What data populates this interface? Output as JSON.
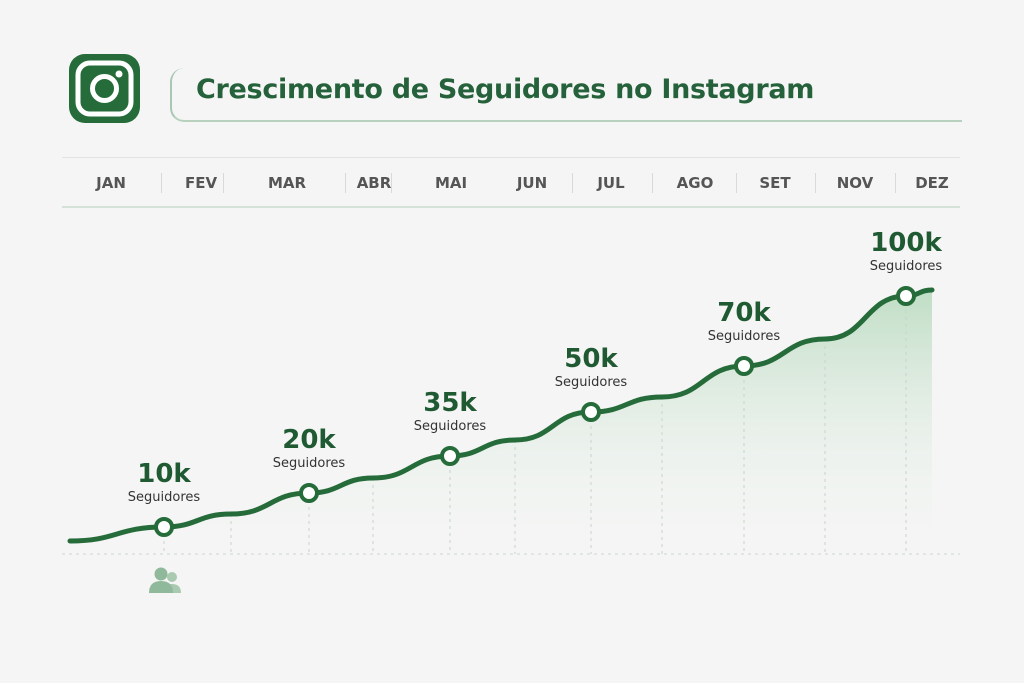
{
  "title": "Crescimento de Seguidores no Instagram",
  "icons": {
    "logo": "instagram-icon",
    "footer": "users-icon"
  },
  "colors": {
    "accent": "#266b3a",
    "fill": "#cfe6d3",
    "background": "#f4f5f4"
  },
  "chart_data": {
    "type": "area",
    "title": "Crescimento de Seguidores no Instagram",
    "categories": [
      "JAN",
      "FEV",
      "MAR",
      "ABR",
      "MAI",
      "JUN",
      "JUL",
      "AGO",
      "SET",
      "NOV",
      "DEZ"
    ],
    "points": [
      {
        "value_label": "10k",
        "unit": "Seguidores",
        "value": 10000
      },
      {
        "value_label": "20k",
        "unit": "Seguidores",
        "value": 20000
      },
      {
        "value_label": "35k",
        "unit": "Seguidores",
        "value": 35000
      },
      {
        "value_label": "50k",
        "unit": "Seguidores",
        "value": 50000
      },
      {
        "value_label": "70k",
        "unit": "Seguidores",
        "value": 70000
      },
      {
        "value_label": "100k",
        "unit": "Seguidores",
        "value": 100000
      }
    ],
    "grid": "dotted-vertical",
    "legend": "none"
  }
}
